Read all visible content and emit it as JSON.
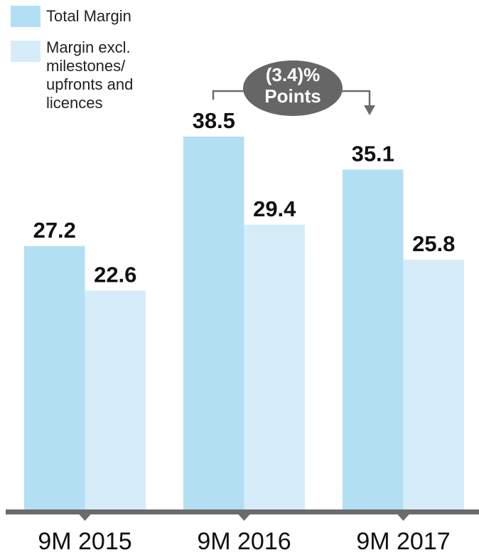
{
  "chart_data": {
    "type": "bar",
    "categories": [
      "9M 2015",
      "9M 2016",
      "9M 2017"
    ],
    "series": [
      {
        "name": "Total Margin",
        "color": "#b3dff3",
        "values": [
          27.2,
          38.5,
          35.1
        ]
      },
      {
        "name": "Margin excl. milestones/ upfronts and licences",
        "color": "#d6edf9",
        "values": [
          22.6,
          29.4,
          25.8
        ]
      }
    ],
    "annotation": [
      "(3.4)%",
      "Points"
    ]
  }
}
